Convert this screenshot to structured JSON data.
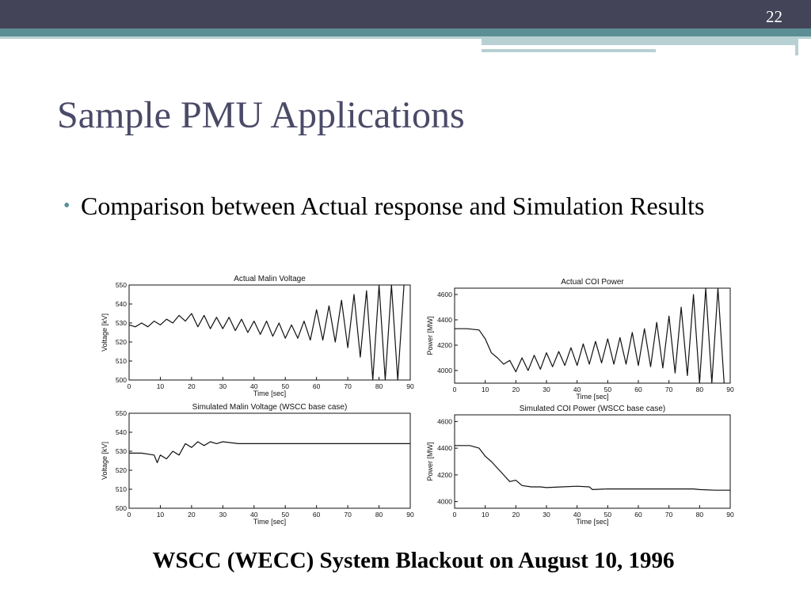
{
  "slide": {
    "number": "22",
    "title": "Sample PMU Applications",
    "bullet": "Comparison between Actual response and Simulation Results",
    "caption": "WSCC (WECC) System Blackout on August 10, 1996"
  },
  "colors": {
    "header": "#434458",
    "accent": "#5c8f95",
    "title": "#4a4a68"
  },
  "chart_data": [
    {
      "type": "line",
      "title": "Actual Malin Voltage",
      "xlabel": "Time [sec]",
      "ylabel": "Voltage [kV]",
      "xlim": [
        0,
        90
      ],
      "ylim": [
        500,
        550
      ],
      "xticks": [
        0,
        10,
        20,
        30,
        40,
        50,
        60,
        70,
        80,
        90
      ],
      "yticks": [
        500,
        510,
        520,
        530,
        540,
        550
      ],
      "series": [
        {
          "x": [
            0,
            2,
            4,
            6,
            8,
            10,
            12,
            14,
            16,
            18,
            20,
            22,
            24,
            26,
            28,
            30,
            32,
            34,
            36,
            38,
            40,
            42,
            44,
            46,
            48,
            50,
            52,
            54,
            56,
            58,
            60,
            62,
            64,
            66,
            68,
            70,
            72,
            74,
            76,
            78,
            80,
            82,
            84,
            86,
            88
          ],
          "y": [
            529,
            528,
            530,
            528,
            531,
            529,
            532,
            530,
            534,
            531,
            535,
            528,
            534,
            527,
            533,
            527,
            533,
            526,
            532,
            525,
            531,
            524,
            531,
            523,
            530,
            522,
            529,
            522,
            531,
            521,
            537,
            521,
            539,
            520,
            542,
            517,
            545,
            512,
            547,
            500,
            550,
            500,
            550,
            500,
            550
          ]
        }
      ]
    },
    {
      "type": "line",
      "title": "Actual COI Power",
      "xlabel": "Time [sec]",
      "ylabel": "Power [MW]",
      "xlim": [
        0,
        90
      ],
      "ylim": [
        3900,
        4650
      ],
      "xticks": [
        0,
        10,
        20,
        30,
        40,
        50,
        60,
        70,
        80,
        90
      ],
      "yticks": [
        4000,
        4200,
        4400,
        4600
      ],
      "series": [
        {
          "x": [
            0,
            4,
            8,
            10,
            12,
            14,
            16,
            18,
            20,
            22,
            24,
            26,
            28,
            30,
            32,
            34,
            36,
            38,
            40,
            42,
            44,
            46,
            48,
            50,
            52,
            54,
            56,
            58,
            60,
            62,
            64,
            66,
            68,
            70,
            72,
            74,
            76,
            78,
            80,
            82,
            84,
            86,
            88
          ],
          "y": [
            4330,
            4330,
            4320,
            4250,
            4140,
            4100,
            4050,
            4080,
            3990,
            4100,
            4000,
            4120,
            4010,
            4140,
            4030,
            4150,
            4040,
            4180,
            4040,
            4210,
            4050,
            4230,
            4060,
            4250,
            4050,
            4260,
            4050,
            4300,
            4040,
            4330,
            4030,
            4380,
            4020,
            4430,
            3980,
            4500,
            3960,
            4600,
            3900,
            4650,
            3900,
            4650,
            3900
          ]
        }
      ]
    },
    {
      "type": "line",
      "title": "Simulated Malin Voltage (WSCC base case)",
      "xlabel": "Time [sec]",
      "ylabel": "Voltage [kV]",
      "xlim": [
        0,
        90
      ],
      "ylim": [
        500,
        550
      ],
      "xticks": [
        0,
        10,
        20,
        30,
        40,
        50,
        60,
        70,
        80,
        90
      ],
      "yticks": [
        500,
        510,
        520,
        530,
        540,
        550
      ],
      "series": [
        {
          "x": [
            0,
            4,
            8,
            9,
            10,
            12,
            14,
            16,
            18,
            20,
            22,
            24,
            26,
            28,
            30,
            35,
            40,
            50,
            60,
            70,
            80,
            90
          ],
          "y": [
            529,
            529,
            528,
            524,
            528,
            526,
            530,
            528,
            534,
            532,
            535,
            533,
            535,
            534,
            535,
            534,
            534,
            534,
            534,
            534,
            534,
            534
          ]
        }
      ]
    },
    {
      "type": "line",
      "title": "Simulated COI Power (WSCC base case)",
      "xlabel": "Time [sec]",
      "ylabel": "Power [MW]",
      "xlim": [
        0,
        90
      ],
      "ylim": [
        3950,
        4650
      ],
      "xticks": [
        0,
        10,
        20,
        30,
        40,
        50,
        60,
        70,
        80,
        90
      ],
      "yticks": [
        4000,
        4200,
        4400,
        4600
      ],
      "series": [
        {
          "x": [
            0,
            5,
            8,
            10,
            12,
            14,
            16,
            18,
            20,
            22,
            25,
            28,
            30,
            35,
            40,
            44,
            45,
            50,
            60,
            70,
            78,
            80,
            85,
            90
          ],
          "y": [
            4420,
            4420,
            4400,
            4340,
            4300,
            4250,
            4200,
            4150,
            4160,
            4120,
            4110,
            4110,
            4105,
            4110,
            4115,
            4110,
            4090,
            4095,
            4095,
            4095,
            4095,
            4090,
            4085,
            4085
          ]
        }
      ]
    }
  ]
}
